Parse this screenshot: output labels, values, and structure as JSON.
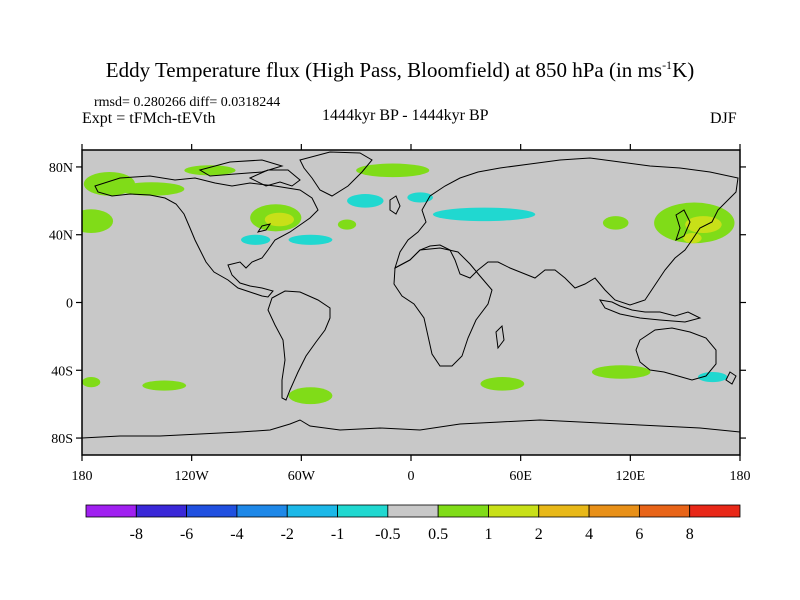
{
  "title": "Eddy Temperature flux (High Pass, Bloomfield) at 850 hPa (in ms",
  "title_sup": "-1",
  "title_end": "K)",
  "stats": "rmsd= 0.280266 diff= 0.0318244",
  "experiment": "Expt = tFMch-tEVth",
  "period": "1444kyr BP - 1444kyr BP",
  "season": "DJF",
  "chart_data": {
    "type": "map",
    "projection": "cylindrical equidistant",
    "lon_range": [
      -180,
      180
    ],
    "lat_range": [
      -90,
      90
    ],
    "lat_ticks": [
      {
        "value": 80,
        "label": "80N"
      },
      {
        "value": 40,
        "label": "40N"
      },
      {
        "value": 0,
        "label": "0"
      },
      {
        "value": -40,
        "label": "40S"
      },
      {
        "value": -80,
        "label": "80S"
      }
    ],
    "lon_ticks": [
      {
        "value": -180,
        "label": "180"
      },
      {
        "value": -120,
        "label": "120W"
      },
      {
        "value": -60,
        "label": "60W"
      },
      {
        "value": 0,
        "label": "0"
      },
      {
        "value": 60,
        "label": "60E"
      },
      {
        "value": 120,
        "label": "120E"
      },
      {
        "value": 180,
        "label": "180"
      }
    ],
    "background_color": "#c8c8c8",
    "colorbar": {
      "labels": [
        "-8",
        "-6",
        "-4",
        "-2",
        "-1",
        "-0.5",
        "0.5",
        "1",
        "2",
        "4",
        "6",
        "8"
      ],
      "colors": [
        "#a020f0",
        "#3a28d8",
        "#2050e0",
        "#1e88e8",
        "#1cb8e8",
        "#20d8d0",
        "#c8c8c8",
        "#80dc18",
        "#c8e018",
        "#e8b818",
        "#e89018",
        "#e86418",
        "#e82818"
      ]
    },
    "anomalies": [
      {
        "lon": -165,
        "lat": 70,
        "rx": 14,
        "ry": 7,
        "level": "0.5 to 1"
      },
      {
        "lon": -175,
        "lat": 48,
        "rx": 12,
        "ry": 7,
        "level": "0.5 to 1"
      },
      {
        "lon": -142,
        "lat": 67,
        "rx": 18,
        "ry": 4,
        "level": "0.5 to 1"
      },
      {
        "lon": -110,
        "lat": 78,
        "rx": 14,
        "ry": 3,
        "level": "0.5 to 1"
      },
      {
        "lon": -74,
        "lat": 50,
        "rx": 14,
        "ry": 8,
        "level": "0.5 to 1"
      },
      {
        "lon": -72,
        "lat": 49,
        "rx": 8,
        "ry": 4,
        "level": "1 to 2"
      },
      {
        "lon": -55,
        "lat": 37,
        "rx": 12,
        "ry": 3,
        "level": "-1 to -0.5"
      },
      {
        "lon": -85,
        "lat": 37,
        "rx": 8,
        "ry": 3,
        "level": "-1 to -0.5"
      },
      {
        "lon": -35,
        "lat": 46,
        "rx": 5,
        "ry": 3,
        "level": "0.5 to 1"
      },
      {
        "lon": -10,
        "lat": 78,
        "rx": 20,
        "ry": 4,
        "level": "0.5 to 1"
      },
      {
        "lon": -25,
        "lat": 60,
        "rx": 10,
        "ry": 4,
        "level": "-1 to -0.5"
      },
      {
        "lon": 5,
        "lat": 62,
        "rx": 7,
        "ry": 3,
        "level": "-1 to -0.5"
      },
      {
        "lon": 40,
        "lat": 52,
        "rx": 28,
        "ry": 4,
        "level": "-1 to -0.5"
      },
      {
        "lon": 112,
        "lat": 47,
        "rx": 7,
        "ry": 4,
        "level": "0.5 to 1"
      },
      {
        "lon": 155,
        "lat": 47,
        "rx": 22,
        "ry": 12,
        "level": "0.5 to 1"
      },
      {
        "lon": 160,
        "lat": 46,
        "rx": 10,
        "ry": 5,
        "level": "1 to 2"
      },
      {
        "lon": 154,
        "lat": 38,
        "rx": 5,
        "ry": 3,
        "level": "1 to 2"
      },
      {
        "lon": -55,
        "lat": -55,
        "rx": 12,
        "ry": 5,
        "level": "0.5 to 1"
      },
      {
        "lon": 50,
        "lat": -48,
        "rx": 12,
        "ry": 4,
        "level": "0.5 to 1"
      },
      {
        "lon": -175,
        "lat": -47,
        "rx": 5,
        "ry": 3,
        "level": "0.5 to 1"
      },
      {
        "lon": -135,
        "lat": -49,
        "rx": 12,
        "ry": 3,
        "level": "0.5 to 1"
      },
      {
        "lon": 115,
        "lat": -41,
        "rx": 16,
        "ry": 4,
        "level": "0.5 to 1"
      },
      {
        "lon": 165,
        "lat": -44,
        "rx": 8,
        "ry": 3,
        "level": "-1 to -0.5"
      }
    ]
  }
}
